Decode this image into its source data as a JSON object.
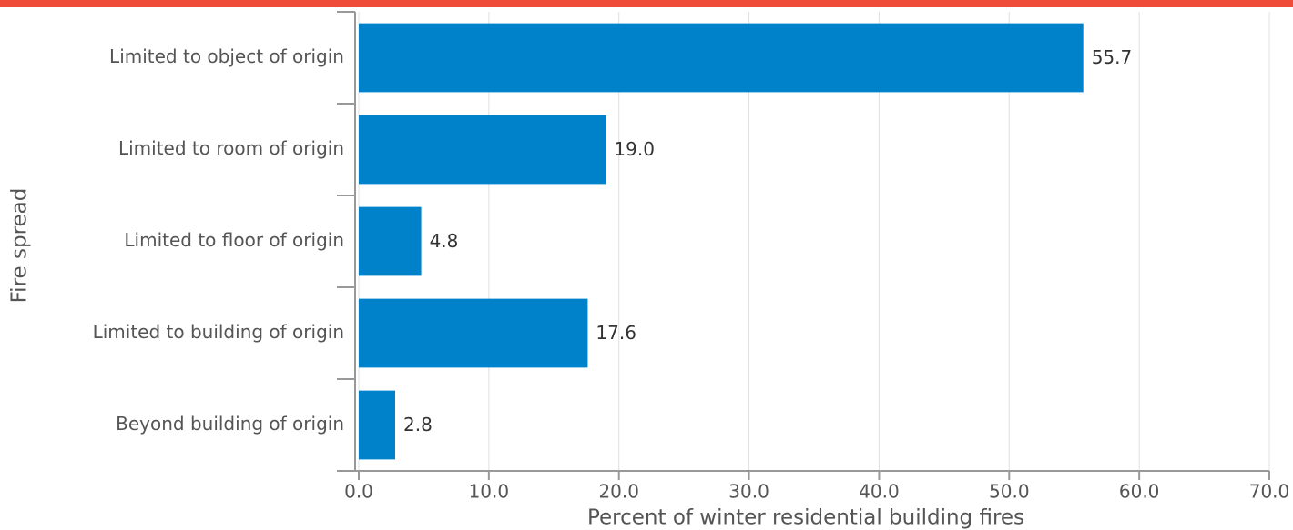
{
  "chart_data": {
    "type": "bar",
    "orientation": "horizontal",
    "categories": [
      "Limited to object of origin",
      "Limited to room of origin",
      "Limited to floor of origin",
      "Limited to building of origin",
      "Beyond building of origin"
    ],
    "values": [
      55.7,
      19.0,
      4.8,
      17.6,
      2.8
    ],
    "value_labels": [
      "55.7",
      "19.0",
      "4.8",
      "17.6",
      "2.8"
    ],
    "color": "#0082ca",
    "xlim": [
      0,
      70
    ],
    "xticks": [
      {
        "value": 0,
        "label": "0.0"
      },
      {
        "value": 10,
        "label": "10.0"
      },
      {
        "value": 20,
        "label": "20.0"
      },
      {
        "value": 30,
        "label": "30.0"
      },
      {
        "value": 40,
        "label": "40.0"
      },
      {
        "value": 50,
        "label": "50.0"
      },
      {
        "value": 60,
        "label": "60.0"
      },
      {
        "value": 70,
        "label": "70.0"
      }
    ],
    "x_label": "Percent of winter residential building fires",
    "y_label": "Fire spread",
    "grid": true
  }
}
